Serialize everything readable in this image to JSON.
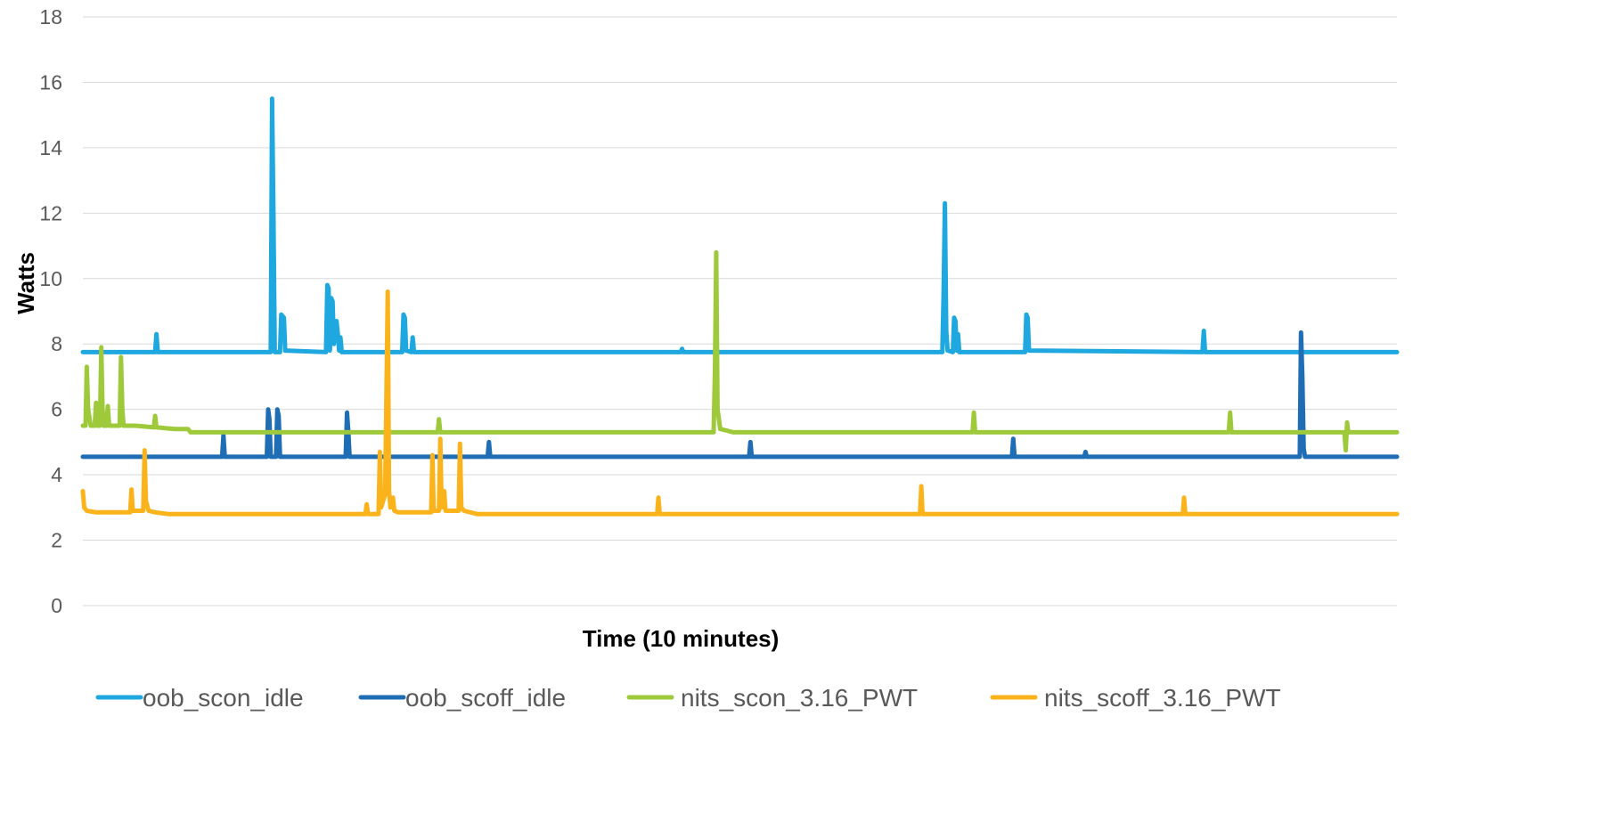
{
  "chart_data": {
    "type": "line",
    "title": "",
    "xlabel": "Time (10 minutes)",
    "ylabel": "Watts",
    "ylim": [
      0,
      18
    ],
    "yticks": [
      0,
      2,
      4,
      6,
      8,
      10,
      12,
      14,
      16,
      18
    ],
    "xlim": [
      0,
      1000
    ],
    "grid": "horizontal",
    "legend_position": "bottom",
    "series": [
      {
        "name": "oob_scon_idle",
        "color": "#1FA8E0",
        "baseline": 7.75,
        "points": [
          [
            0,
            7.75
          ],
          [
            55,
            7.75
          ],
          [
            56,
            8.3
          ],
          [
            57,
            7.75
          ],
          [
            143,
            7.75
          ],
          [
            144,
            15.5
          ],
          [
            145,
            12.0
          ],
          [
            146,
            7.75
          ],
          [
            150,
            7.75
          ],
          [
            151,
            8.9
          ],
          [
            153,
            8.8
          ],
          [
            154,
            7.8
          ],
          [
            185,
            7.75
          ],
          [
            186,
            9.8
          ],
          [
            187,
            9.7
          ],
          [
            188,
            7.8
          ],
          [
            189,
            9.4
          ],
          [
            190,
            9.3
          ],
          [
            191,
            8.0
          ],
          [
            193,
            8.7
          ],
          [
            194,
            8.3
          ],
          [
            195,
            7.8
          ],
          [
            196,
            8.2
          ],
          [
            197,
            7.75
          ],
          [
            243,
            7.75
          ],
          [
            244,
            8.9
          ],
          [
            245,
            8.8
          ],
          [
            246,
            7.8
          ],
          [
            250,
            7.75
          ],
          [
            251,
            8.2
          ],
          [
            252,
            7.75
          ],
          [
            455,
            7.75
          ],
          [
            456,
            7.85
          ],
          [
            457,
            7.75
          ],
          [
            654,
            7.75
          ],
          [
            655,
            9.5
          ],
          [
            656,
            12.3
          ],
          [
            657,
            8.4
          ],
          [
            658,
            7.8
          ],
          [
            662,
            7.75
          ],
          [
            663,
            8.8
          ],
          [
            664,
            8.7
          ],
          [
            665,
            7.8
          ],
          [
            666,
            8.3
          ],
          [
            667,
            7.75
          ],
          [
            717,
            7.75
          ],
          [
            718,
            8.9
          ],
          [
            719,
            8.8
          ],
          [
            720,
            7.8
          ],
          [
            852,
            7.75
          ],
          [
            853,
            8.4
          ],
          [
            854,
            7.75
          ],
          [
            1000,
            7.75
          ]
        ]
      },
      {
        "name": "oob_scoff_idle",
        "color": "#1F6EB5",
        "baseline": 4.55,
        "points": [
          [
            0,
            4.55
          ],
          [
            106,
            4.55
          ],
          [
            107,
            5.2
          ],
          [
            108,
            4.55
          ],
          [
            140,
            4.55
          ],
          [
            141,
            6.0
          ],
          [
            142,
            5.7
          ],
          [
            143,
            4.55
          ],
          [
            147,
            4.55
          ],
          [
            148,
            6.0
          ],
          [
            149,
            5.8
          ],
          [
            150,
            4.55
          ],
          [
            200,
            4.55
          ],
          [
            201,
            5.9
          ],
          [
            202,
            5.3
          ],
          [
            203,
            4.55
          ],
          [
            308,
            4.55
          ],
          [
            309,
            5.0
          ],
          [
            310,
            4.55
          ],
          [
            507,
            4.55
          ],
          [
            508,
            5.0
          ],
          [
            509,
            4.55
          ],
          [
            707,
            4.55
          ],
          [
            708,
            5.1
          ],
          [
            709,
            4.55
          ],
          [
            762,
            4.55
          ],
          [
            763,
            4.7
          ],
          [
            764,
            4.55
          ],
          [
            926,
            4.55
          ],
          [
            927,
            8.35
          ],
          [
            928,
            7.0
          ],
          [
            929,
            4.8
          ],
          [
            930,
            4.55
          ],
          [
            1000,
            4.55
          ]
        ]
      },
      {
        "name": "nits_scon_3.16_PWT",
        "color": "#9DC93B",
        "baseline": 5.3,
        "points": [
          [
            0,
            5.5
          ],
          [
            2,
            5.5
          ],
          [
            3,
            7.3
          ],
          [
            4,
            6.0
          ],
          [
            6,
            5.5
          ],
          [
            9,
            5.5
          ],
          [
            10,
            6.2
          ],
          [
            11,
            5.5
          ],
          [
            13,
            5.5
          ],
          [
            14,
            7.9
          ],
          [
            15,
            6.0
          ],
          [
            16,
            5.5
          ],
          [
            18,
            5.5
          ],
          [
            19,
            6.1
          ],
          [
            20,
            5.5
          ],
          [
            28,
            5.5
          ],
          [
            29,
            7.6
          ],
          [
            30,
            6.0
          ],
          [
            31,
            5.5
          ],
          [
            35,
            5.5
          ],
          [
            40,
            5.5
          ],
          [
            54,
            5.45
          ],
          [
            55,
            5.8
          ],
          [
            56,
            5.45
          ],
          [
            70,
            5.4
          ],
          [
            80,
            5.4
          ],
          [
            82,
            5.3
          ],
          [
            270,
            5.3
          ],
          [
            271,
            5.7
          ],
          [
            272,
            5.3
          ],
          [
            480,
            5.3
          ],
          [
            481,
            7.2
          ],
          [
            482,
            10.8
          ],
          [
            483,
            6.0
          ],
          [
            485,
            5.4
          ],
          [
            490,
            5.35
          ],
          [
            495,
            5.3
          ],
          [
            677,
            5.3
          ],
          [
            678,
            5.9
          ],
          [
            679,
            5.3
          ],
          [
            872,
            5.3
          ],
          [
            873,
            5.9
          ],
          [
            874,
            5.3
          ],
          [
            960,
            5.3
          ],
          [
            961,
            4.75
          ],
          [
            962,
            5.6
          ],
          [
            963,
            5.3
          ],
          [
            1000,
            5.3
          ]
        ]
      },
      {
        "name": "nits_scoff_3.16_PWT",
        "color": "#FBB31B",
        "baseline": 2.8,
        "points": [
          [
            0,
            3.5
          ],
          [
            1,
            3.0
          ],
          [
            3,
            2.9
          ],
          [
            10,
            2.85
          ],
          [
            36,
            2.85
          ],
          [
            37,
            3.55
          ],
          [
            38,
            2.9
          ],
          [
            46,
            2.9
          ],
          [
            47,
            4.75
          ],
          [
            48,
            3.2
          ],
          [
            50,
            2.9
          ],
          [
            55,
            2.85
          ],
          [
            65,
            2.8
          ],
          [
            215,
            2.8
          ],
          [
            216,
            3.1
          ],
          [
            217,
            2.8
          ],
          [
            225,
            2.8
          ],
          [
            226,
            4.7
          ],
          [
            227,
            3.0
          ],
          [
            230,
            3.4
          ],
          [
            232,
            9.6
          ],
          [
            233,
            3.5
          ],
          [
            234,
            3.0
          ],
          [
            236,
            3.3
          ],
          [
            237,
            2.9
          ],
          [
            240,
            2.85
          ],
          [
            265,
            2.85
          ],
          [
            266,
            4.6
          ],
          [
            267,
            2.9
          ],
          [
            271,
            2.9
          ],
          [
            272,
            5.1
          ],
          [
            273,
            3.0
          ],
          [
            275,
            3.5
          ],
          [
            276,
            2.9
          ],
          [
            286,
            2.9
          ],
          [
            287,
            4.95
          ],
          [
            288,
            3.0
          ],
          [
            290,
            2.9
          ],
          [
            300,
            2.8
          ],
          [
            437,
            2.8
          ],
          [
            438,
            3.3
          ],
          [
            439,
            2.8
          ],
          [
            637,
            2.8
          ],
          [
            638,
            3.65
          ],
          [
            639,
            2.8
          ],
          [
            837,
            2.8
          ],
          [
            838,
            3.3
          ],
          [
            839,
            2.8
          ],
          [
            1000,
            2.8
          ]
        ]
      }
    ]
  }
}
